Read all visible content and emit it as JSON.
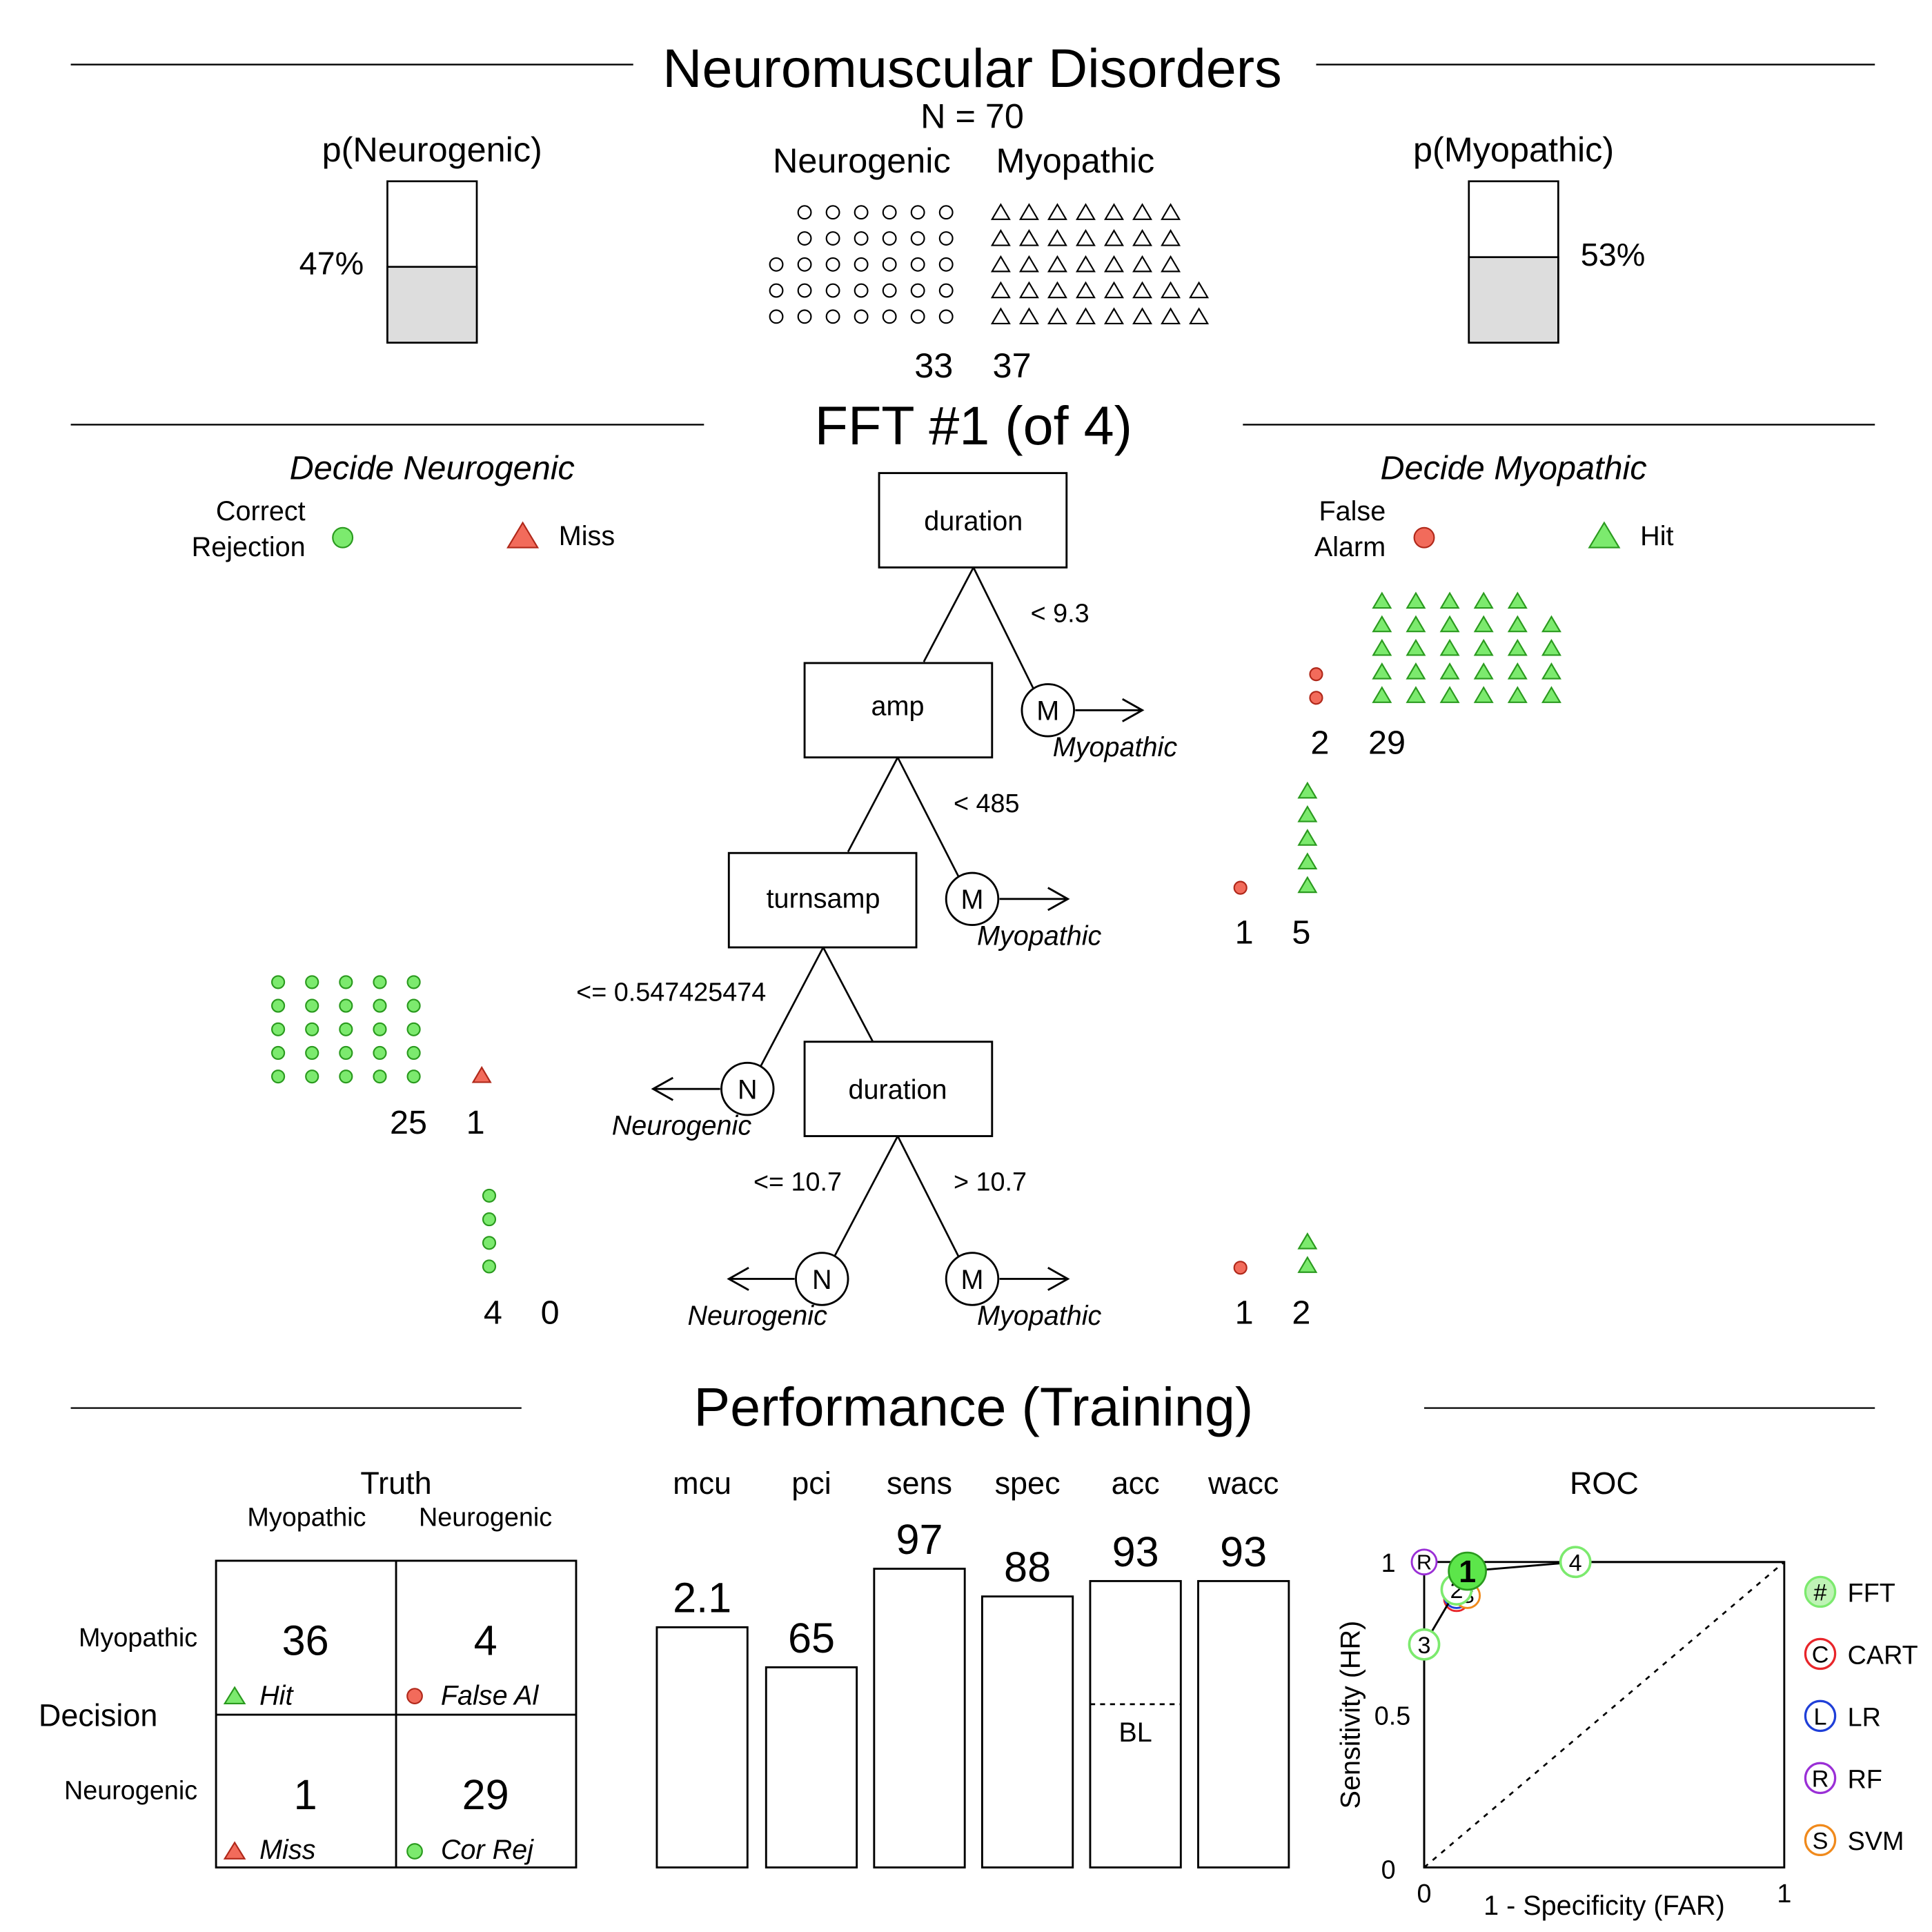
{
  "colors": {
    "green": "#7CEA6E",
    "green_stroke": "#2a9a1e",
    "red": "#F26B5B",
    "red_stroke": "#b0281a",
    "bar_fill": "#dddddd",
    "fft_point": "#5CE64A",
    "cart": "#e8252a",
    "lr": "#1f3fd8",
    "rf": "#9a2fd6",
    "svm": "#f08a1c"
  },
  "header": {
    "title": "Neuromuscular Disorders",
    "n_label": "N = 70",
    "class_left": "Neurogenic",
    "class_right": "Myopathic",
    "count_left": "33",
    "count_right": "37",
    "p_left": {
      "title": "p(Neurogenic)",
      "label": "47%",
      "value": 0.47
    },
    "p_right": {
      "title": "p(Myopathic)",
      "label": "53%",
      "value": 0.53
    }
  },
  "tree": {
    "title": "FFT #1 (of 4)",
    "left_heading": "Decide Neurogenic",
    "right_heading": "Decide Myopathic",
    "legend": {
      "cr": "Correct\nRejection",
      "miss": "Miss",
      "fa": "False\nAlarm",
      "hit": "Hit"
    },
    "nodes": [
      {
        "label": "duration",
        "cue_label": "< 9.3",
        "exit_symbol": "M",
        "exit_label": "Myopathic",
        "fa": 2,
        "hit": 29
      },
      {
        "label": "amp",
        "cue_label": "< 485",
        "exit_symbol": "M",
        "exit_label": "Myopathic",
        "fa": 1,
        "hit": 5
      },
      {
        "label": "turnsamp",
        "cue_label": "<= 0.547425474",
        "exit_symbol": "N",
        "exit_label": "Neurogenic",
        "cr": 25,
        "miss": 1
      },
      {
        "label": "duration",
        "cue_left": "<= 10.7",
        "cue_right": "> 10.7",
        "exit_left": {
          "symbol": "N",
          "label": "Neurogenic",
          "cr": 4,
          "miss": 0
        },
        "exit_right": {
          "symbol": "M",
          "label": "Myopathic",
          "fa": 1,
          "hit": 2
        }
      }
    ]
  },
  "performance": {
    "title": "Performance (Training)",
    "matrix": {
      "truth_label": "Truth",
      "decision_label": "Decision",
      "col_labels": [
        "Myopathic",
        "Neurogenic"
      ],
      "row_labels": [
        "Myopathic",
        "Neurogenic"
      ],
      "hit": {
        "value": "36",
        "label": "Hit"
      },
      "fa": {
        "value": "4",
        "label": "False Al"
      },
      "miss": {
        "value": "1",
        "label": "Miss"
      },
      "cr": {
        "value": "29",
        "label": "Cor Rej"
      }
    },
    "roc": {
      "title": "ROC",
      "xlabel": "1 - Specificity (FAR)",
      "ylabel": "Sensitivity (HR)",
      "x_ticks": [
        "0",
        "1"
      ],
      "y_ticks": [
        "0",
        "0.5",
        "1"
      ],
      "legend": [
        {
          "symbol": "#",
          "name": "FFT"
        },
        {
          "symbol": "C",
          "name": "CART"
        },
        {
          "symbol": "L",
          "name": "LR"
        },
        {
          "symbol": "R",
          "name": "RF"
        },
        {
          "symbol": "S",
          "name": "SVM"
        }
      ]
    }
  },
  "chart_data": [
    {
      "type": "bar",
      "title": "Performance (Training)",
      "categories": [
        "mcu",
        "pci",
        "sens",
        "spec",
        "acc",
        "wacc"
      ],
      "value_labels": [
        "2.1",
        "65",
        "97",
        "88",
        "93",
        "93"
      ],
      "values": [
        2.1,
        65,
        97,
        88,
        93,
        93
      ],
      "baseline_label": "BL",
      "baseline_acc": 0.53
    },
    {
      "type": "scatter",
      "title": "ROC",
      "xlabel": "1 - Specificity (FAR)",
      "ylabel": "Sensitivity (HR)",
      "xlim": [
        0,
        1
      ],
      "ylim": [
        0,
        1
      ],
      "fft_curve": [
        {
          "label": "3",
          "x": 0.0,
          "y": 0.73
        },
        {
          "label": "2",
          "x": 0.09,
          "y": 0.91
        },
        {
          "label": "1",
          "x": 0.12,
          "y": 0.97
        },
        {
          "label": "4",
          "x": 0.42,
          "y": 1.0
        }
      ],
      "selected_tree": "1",
      "competitors": [
        {
          "symbol": "C",
          "name": "CART",
          "x": 0.09,
          "y": 0.88
        },
        {
          "symbol": "L",
          "name": "LR",
          "x": 0.09,
          "y": 0.89
        },
        {
          "symbol": "R",
          "name": "RF",
          "x": 0.0,
          "y": 1.0
        },
        {
          "symbol": "S",
          "name": "SVM",
          "x": 0.12,
          "y": 0.89
        }
      ]
    }
  ]
}
